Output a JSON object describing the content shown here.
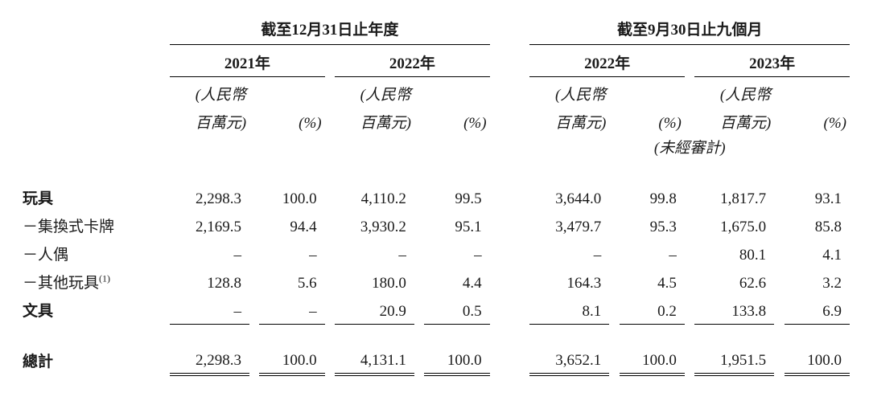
{
  "periods": {
    "annual_header": "截至12月31日止年度",
    "interim_header": "截至9月30日止九個月",
    "y2021": "2021年",
    "y2022": "2022年",
    "i2022": "2022年",
    "i2023": "2023年"
  },
  "unit_labels": {
    "rmb_mil": "(人民幣\n百萬元)",
    "rmb_line1": "(人民幣",
    "rmb_line2": "百萬元)",
    "pct": "(%)",
    "unaudited": "(未經審計)"
  },
  "rows": {
    "toys": {
      "label": "玩具",
      "v2021": "2,298.3",
      "p2021": "100.0",
      "v2022": "4,110.2",
      "p2022": "99.5",
      "vi2022": "3,644.0",
      "pi2022": "99.8",
      "vi2023": "1,817.7",
      "pi2023": "93.1"
    },
    "cards": {
      "label": "－集換式卡牌",
      "v2021": "2,169.5",
      "p2021": "94.4",
      "v2022": "3,930.2",
      "p2022": "95.1",
      "vi2022": "3,479.7",
      "pi2022": "95.3",
      "vi2023": "1,675.0",
      "pi2023": "85.8"
    },
    "figures": {
      "label": "－人偶",
      "v2021": "–",
      "p2021": "–",
      "v2022": "–",
      "p2022": "–",
      "vi2022": "–",
      "pi2022": "–",
      "vi2023": "80.1",
      "pi2023": "4.1"
    },
    "other_toys": {
      "label_main": "－其他玩具",
      "footnote": "(1)",
      "v2021": "128.8",
      "p2021": "5.6",
      "v2022": "180.0",
      "p2022": "4.4",
      "vi2022": "164.3",
      "pi2022": "4.5",
      "vi2023": "62.6",
      "pi2023": "3.2"
    },
    "stationery": {
      "label": "文具",
      "v2021": "–",
      "p2021": "–",
      "v2022": "20.9",
      "p2022": "0.5",
      "vi2022": "8.1",
      "pi2022": "0.2",
      "vi2023": "133.8",
      "pi2023": "6.9"
    },
    "total": {
      "label": "總計",
      "v2021": "2,298.3",
      "p2021": "100.0",
      "v2022": "4,131.1",
      "p2022": "100.0",
      "vi2022": "3,652.1",
      "pi2022": "100.0",
      "vi2023": "1,951.5",
      "pi2023": "100.0"
    }
  }
}
